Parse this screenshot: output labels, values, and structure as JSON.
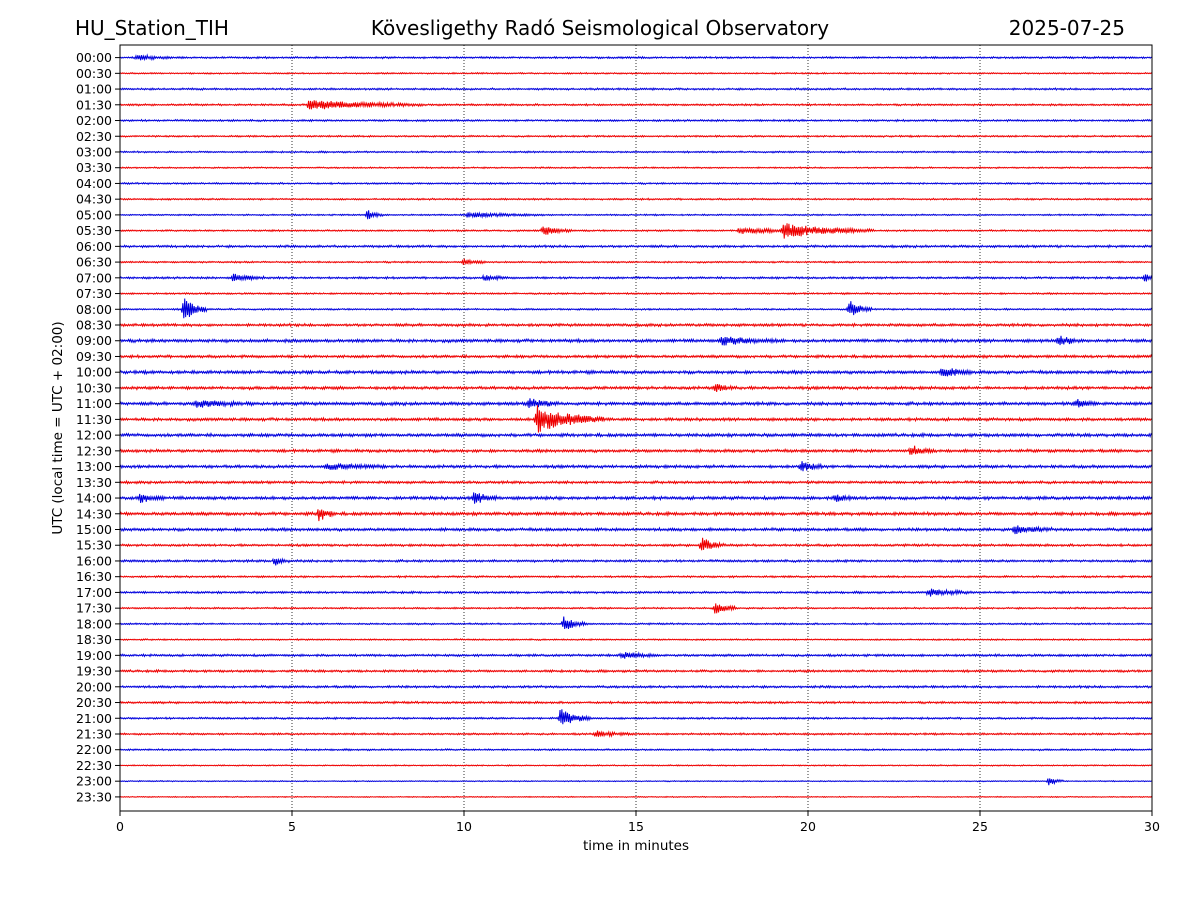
{
  "header": {
    "station": "HU_Station_TIH",
    "observatory": "Kövesligethy Radó Seismological Observatory",
    "date": "2025-07-25"
  },
  "chart_data": {
    "type": "line",
    "xlabel": "time in minutes",
    "ylabel": "UTC (local time = UTC + 02:00)",
    "xlim": [
      0,
      30
    ],
    "x_ticks": [
      0,
      5,
      10,
      15,
      20,
      25,
      30
    ],
    "grid": "vertical dotted lines at each x tick",
    "row_labels": [
      "00:00",
      "00:30",
      "01:00",
      "01:30",
      "02:00",
      "02:30",
      "03:00",
      "03:30",
      "04:00",
      "04:30",
      "05:00",
      "05:30",
      "06:00",
      "06:30",
      "07:00",
      "07:30",
      "08:00",
      "08:30",
      "09:00",
      "09:30",
      "10:00",
      "10:30",
      "11:00",
      "11:30",
      "12:00",
      "12:30",
      "13:00",
      "13:30",
      "14:00",
      "14:30",
      "15:00",
      "15:30",
      "16:00",
      "16:30",
      "17:00",
      "17:30",
      "18:00",
      "18:30",
      "19:00",
      "19:30",
      "20:00",
      "20:30",
      "21:00",
      "21:30",
      "22:00",
      "22:30",
      "23:00",
      "23:30"
    ],
    "trace_colors": [
      "#0000dd",
      "#ee0000"
    ],
    "noise_level": [
      0.9,
      0.7,
      0.9,
      0.9,
      0.9,
      0.8,
      0.8,
      0.7,
      0.8,
      0.8,
      0.7,
      0.8,
      1.1,
      0.8,
      1.0,
      0.8,
      0.8,
      1.3,
      1.5,
      1.3,
      1.5,
      1.4,
      1.5,
      1.4,
      1.5,
      1.4,
      1.4,
      1.2,
      1.5,
      1.5,
      1.4,
      1.1,
      1.1,
      0.9,
      1.0,
      0.8,
      0.8,
      0.7,
      1.1,
      1.1,
      1.1,
      1.0,
      0.9,
      0.9,
      0.8,
      0.6,
      0.5,
      0.5
    ],
    "events": [
      {
        "row": "00:00",
        "minute": 0.5,
        "amplitude": 2.5,
        "duration": 0.5
      },
      {
        "row": "01:30",
        "minute": 5.5,
        "amplitude": 5.0,
        "duration": 1.5
      },
      {
        "row": "05:00",
        "minute": 7.2,
        "amplitude": 5.5,
        "duration": 0.2
      },
      {
        "row": "05:00",
        "minute": 10.1,
        "amplitude": 2.5,
        "duration": 1.0
      },
      {
        "row": "05:30",
        "minute": 12.3,
        "amplitude": 5.0,
        "duration": 0.4
      },
      {
        "row": "05:30",
        "minute": 19.3,
        "amplitude": 7.0,
        "duration": 1.2
      },
      {
        "row": "05:30",
        "minute": 18.0,
        "amplitude": 3.0,
        "duration": 1.0
      },
      {
        "row": "06:30",
        "minute": 10.0,
        "amplitude": 3.0,
        "duration": 0.3
      },
      {
        "row": "07:00",
        "minute": 3.3,
        "amplitude": 4.0,
        "duration": 0.4
      },
      {
        "row": "07:00",
        "minute": 10.6,
        "amplitude": 3.0,
        "duration": 0.3
      },
      {
        "row": "07:00",
        "minute": 29.8,
        "amplitude": 4.0,
        "duration": 0.2
      },
      {
        "row": "08:00",
        "minute": 1.85,
        "amplitude": 13.0,
        "duration": 0.3
      },
      {
        "row": "08:00",
        "minute": 21.2,
        "amplitude": 9.0,
        "duration": 0.3
      },
      {
        "row": "09:00",
        "minute": 17.5,
        "amplitude": 4.0,
        "duration": 0.8
      },
      {
        "row": "09:00",
        "minute": 27.3,
        "amplitude": 5.0,
        "duration": 0.3
      },
      {
        "row": "10:00",
        "minute": 23.9,
        "amplitude": 5.0,
        "duration": 0.4
      },
      {
        "row": "10:30",
        "minute": 17.3,
        "amplitude": 4.0,
        "duration": 0.3
      },
      {
        "row": "11:00",
        "minute": 2.2,
        "amplitude": 3.0,
        "duration": 0.8
      },
      {
        "row": "11:00",
        "minute": 11.9,
        "amplitude": 5.0,
        "duration": 0.4
      },
      {
        "row": "11:00",
        "minute": 27.8,
        "amplitude": 4.0,
        "duration": 0.3
      },
      {
        "row": "11:30",
        "minute": 12.1,
        "amplitude": 14.0,
        "duration": 0.9
      },
      {
        "row": "12:30",
        "minute": 23.0,
        "amplitude": 5.0,
        "duration": 0.3
      },
      {
        "row": "13:00",
        "minute": 6.0,
        "amplitude": 3.0,
        "duration": 0.8
      },
      {
        "row": "13:00",
        "minute": 19.8,
        "amplitude": 5.0,
        "duration": 0.3
      },
      {
        "row": "14:00",
        "minute": 0.6,
        "amplitude": 5.0,
        "duration": 0.3
      },
      {
        "row": "14:00",
        "minute": 10.3,
        "amplitude": 6.0,
        "duration": 0.3
      },
      {
        "row": "14:00",
        "minute": 20.8,
        "amplitude": 4.0,
        "duration": 0.3
      },
      {
        "row": "14:30",
        "minute": 5.8,
        "amplitude": 8.0,
        "duration": 0.2
      },
      {
        "row": "15:00",
        "minute": 26.0,
        "amplitude": 4.0,
        "duration": 0.5
      },
      {
        "row": "15:30",
        "minute": 16.9,
        "amplitude": 8.0,
        "duration": 0.3
      },
      {
        "row": "16:00",
        "minute": 4.5,
        "amplitude": 4.0,
        "duration": 0.2
      },
      {
        "row": "17:00",
        "minute": 23.5,
        "amplitude": 4.0,
        "duration": 0.6
      },
      {
        "row": "17:30",
        "minute": 17.3,
        "amplitude": 7.0,
        "duration": 0.3
      },
      {
        "row": "18:00",
        "minute": 12.9,
        "amplitude": 7.0,
        "duration": 0.3
      },
      {
        "row": "19:00",
        "minute": 14.6,
        "amplitude": 3.0,
        "duration": 0.5
      },
      {
        "row": "21:00",
        "minute": 12.8,
        "amplitude": 10.0,
        "duration": 0.4
      },
      {
        "row": "21:30",
        "minute": 13.8,
        "amplitude": 3.0,
        "duration": 0.5
      },
      {
        "row": "23:00",
        "minute": 27.0,
        "amplitude": 4.0,
        "duration": 0.2
      }
    ]
  }
}
